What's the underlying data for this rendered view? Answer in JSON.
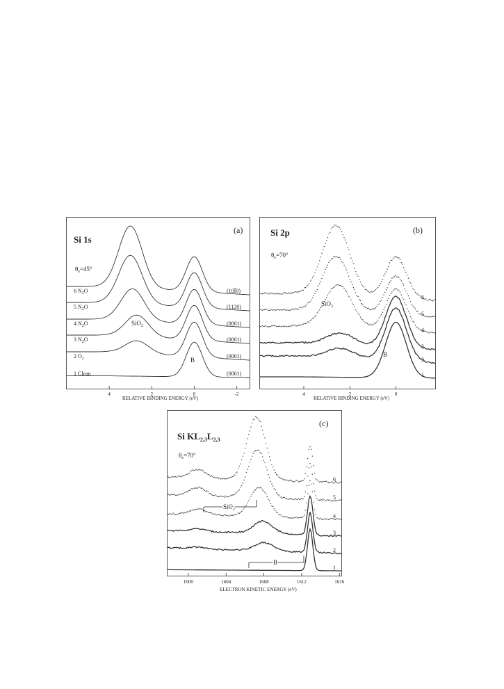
{
  "panels": [
    {
      "id": "a",
      "panel_label": "(a)",
      "element": "Si 1s",
      "angle": "θ",
      "angle_sub": "e",
      "angle_value": "=45°",
      "xlabel": "RELATIVE BINDING ENERGY (eV)",
      "peak_labels": {
        "oxide": "SiO",
        "oxide_sub": "2",
        "bulk": "B"
      },
      "curve_labels": [
        {
          "n": "1",
          "text": "Clean"
        },
        {
          "n": "2",
          "text": "O",
          "sub": "2"
        },
        {
          "n": "3",
          "text": "N",
          "sub": "2",
          "tail": "O"
        },
        {
          "n": "4",
          "text": "N",
          "sub": "2",
          "tail": "O"
        },
        {
          "n": "5",
          "text": "N",
          "sub": "2",
          "tail": "O"
        },
        {
          "n": "6",
          "text": "N",
          "sub": "2",
          "tail": "O"
        }
      ],
      "surface_labels": [
        "(0001)",
        "(0001)",
        "(0001)",
        "(0001)",
        "(1120)",
        "(10Ī0)"
      ]
    },
    {
      "id": "b",
      "panel_label": "(b)",
      "element": "Si 2p",
      "angle": "θ",
      "angle_sub": "e",
      "angle_value": "=70°",
      "xlabel": "RELATIVE BINDING ENERGY (eV)",
      "peak_labels": {
        "oxide": "SiO",
        "oxide_sub": "2",
        "bulk": "B"
      },
      "curve_labels": [
        "1",
        "2",
        "3",
        "4",
        "5",
        "6"
      ]
    },
    {
      "id": "c",
      "panel_label": "(c)",
      "element": "Si KL",
      "element_sub1": "2,3",
      "element_mid": "L",
      "element_sub2": "2,3",
      "angle": "θ",
      "angle_sub": "e",
      "angle_value": "=70°",
      "xlabel": "ELECTRON KINETIC ENERGY (eV)",
      "peak_labels": {
        "oxide": "SiO",
        "oxide_sub": "2",
        "bulk": "B"
      },
      "curve_labels": [
        "1",
        "2",
        "3",
        "4",
        "5",
        "6"
      ]
    }
  ],
  "chart_data": [
    {
      "type": "line",
      "panel": "a",
      "x_axis": {
        "label": "RELATIVE BINDING ENERGY (eV)",
        "reversed": true,
        "xlim": [
          6.0,
          -2.6
        ],
        "ticks": [
          4,
          2,
          0,
          -2
        ]
      },
      "y_axis": {
        "label": "",
        "ticks": []
      },
      "oxide_peak_position": [
        2.7,
        2.7,
        2.9,
        3.0,
        3.0
      ],
      "series": [
        {
          "name": "1 Clean",
          "oxide_rel": 0.0,
          "bulk_rel": 1.0
        },
        {
          "name": "2 O2",
          "oxide_rel": 0.38,
          "bulk_rel": 1.0
        },
        {
          "name": "3 N2O",
          "oxide_rel": 0.65,
          "bulk_rel": 1.0
        },
        {
          "name": "4 N2O",
          "oxide_rel": 0.95,
          "bulk_rel": 1.0
        },
        {
          "name": "5 N2O",
          "oxide_rel": 1.45,
          "bulk_rel": 1.0
        },
        {
          "name": "6 N2O",
          "oxide_rel": 1.85,
          "bulk_rel": 1.0
        }
      ]
    },
    {
      "type": "scatter",
      "panel": "b",
      "x_axis": {
        "label": "RELATIVE BINDING ENERGY (eV)",
        "reversed": true,
        "xlim": [
          5.9,
          -1.7
        ],
        "ticks": [
          4,
          2,
          0
        ]
      },
      "y_axis": {
        "label": "",
        "ticks": []
      },
      "oxide_peak_position": [
        2.4,
        2.4,
        2.5,
        2.6,
        2.6
      ],
      "series": [
        {
          "name": "1",
          "oxide_rel": 0.0,
          "bulk_rel": 1.0
        },
        {
          "name": "2",
          "oxide_rel": 0.28,
          "bulk_rel": 0.95
        },
        {
          "name": "3",
          "oxide_rel": 0.34,
          "bulk_rel": 0.92
        },
        {
          "name": "4",
          "oxide_rel": 1.25,
          "bulk_rel": 0.75
        },
        {
          "name": "5",
          "oxide_rel": 1.6,
          "bulk_rel": 0.7
        },
        {
          "name": "6",
          "oxide_rel": 2.0,
          "bulk_rel": 0.75
        }
      ]
    },
    {
      "type": "scatter",
      "panel": "c",
      "x_axis": {
        "label": "ELECTRON KINETIC ENERGY (eV)",
        "reversed": false,
        "xlim": [
          1597.8,
          1616.2
        ],
        "ticks": [
          1600,
          1604,
          1608,
          1612,
          1616
        ]
      },
      "y_axis": {
        "label": "",
        "ticks": []
      },
      "oxide_peak_position": [
        1608.0,
        1607.9,
        1607.5,
        1607.3,
        1607.2
      ],
      "series": [
        {
          "name": "1",
          "oxide_rel": 0.0,
          "bulk_rel": 1.0
        },
        {
          "name": "2",
          "oxide_rel": 0.4,
          "bulk_rel": 0.95
        },
        {
          "name": "3",
          "oxide_rel": 0.6,
          "bulk_rel": 0.95
        },
        {
          "name": "4",
          "oxide_rel": 1.4,
          "bulk_rel": 0.9
        },
        {
          "name": "5",
          "oxide_rel": 2.3,
          "bulk_rel": 0.85
        },
        {
          "name": "6",
          "oxide_rel": 3.0,
          "bulk_rel": 0.85
        }
      ]
    }
  ]
}
